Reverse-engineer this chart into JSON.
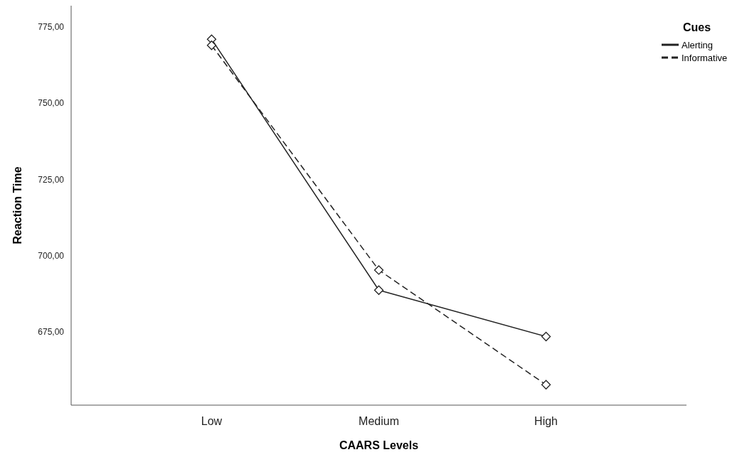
{
  "chart_data": {
    "type": "line",
    "xlabel": "CAARS Levels",
    "ylabel": "Reaction Time",
    "legend_title": "Cues",
    "categories": [
      "Low",
      "Medium",
      "High"
    ],
    "series": [
      {
        "name": "Alerting",
        "color": "#222222",
        "line_style": "solid",
        "values": [
          771,
          688.7,
          673.5
        ]
      },
      {
        "name": "Informative",
        "color": "#222222",
        "line_style": "dashed",
        "values": [
          769,
          695.3,
          657.7
        ]
      }
    ],
    "ylim": [
      651,
      782
    ],
    "yticks": [
      {
        "value": 675,
        "label": "675,00"
      },
      {
        "value": 700,
        "label": "700,00"
      },
      {
        "value": 725,
        "label": "725,00"
      },
      {
        "value": 750,
        "label": "750,00"
      },
      {
        "value": 775,
        "label": "775,00"
      }
    ],
    "marker": "diamond",
    "grid": false,
    "legend": "top right"
  }
}
